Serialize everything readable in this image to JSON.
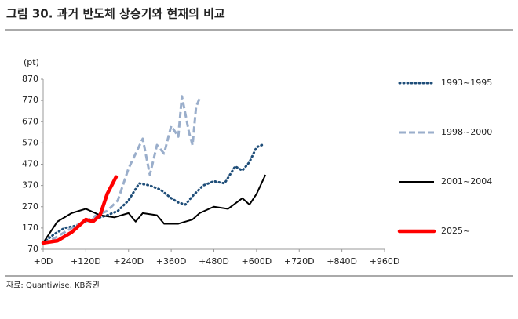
{
  "chart_data": {
    "type": "line",
    "title": "그림 30. 과거 반도체 상승기와 현재의 비교",
    "y_label": "(pt)",
    "source": "자료: Quantiwise, KB증권",
    "xlim": [
      0,
      960
    ],
    "ylim": [
      70,
      870
    ],
    "xticks": [
      {
        "value": 0,
        "label": "+0D"
      },
      {
        "value": 120,
        "label": "+120D"
      },
      {
        "value": 240,
        "label": "+240D"
      },
      {
        "value": 360,
        "label": "+360D"
      },
      {
        "value": 480,
        "label": "+480D"
      },
      {
        "value": 600,
        "label": "+600D"
      },
      {
        "value": 720,
        "label": "+720D"
      },
      {
        "value": 840,
        "label": "+840D"
      },
      {
        "value": 960,
        "label": "+960D"
      }
    ],
    "yticks": [
      70,
      170,
      270,
      370,
      470,
      570,
      670,
      770,
      870
    ],
    "legend": "right",
    "series": [
      {
        "name": "1993~1995",
        "color": "#1f4e79",
        "line_style": "dotted",
        "x": [
          0,
          30,
          60,
          90,
          120,
          150,
          180,
          210,
          240,
          255,
          270,
          300,
          330,
          360,
          380,
          400,
          420,
          450,
          480,
          510,
          540,
          560,
          580,
          600,
          615
        ],
        "values": [
          100,
          140,
          170,
          180,
          200,
          215,
          230,
          250,
          300,
          340,
          380,
          370,
          350,
          310,
          290,
          280,
          320,
          370,
          390,
          380,
          460,
          440,
          480,
          550,
          560
        ]
      },
      {
        "name": "1998~2000",
        "color": "#9aaecb",
        "line_style": "dashed",
        "x": [
          0,
          30,
          60,
          90,
          120,
          150,
          180,
          210,
          240,
          260,
          280,
          300,
          320,
          340,
          360,
          380,
          390,
          410,
          420,
          430,
          440
        ],
        "values": [
          100,
          120,
          150,
          180,
          200,
          230,
          250,
          300,
          450,
          520,
          590,
          420,
          560,
          520,
          650,
          600,
          790,
          620,
          560,
          740,
          780
        ]
      },
      {
        "name": "2001~2004",
        "color": "#000000",
        "line_style": "solid",
        "x": [
          0,
          40,
          80,
          120,
          160,
          200,
          240,
          260,
          280,
          320,
          340,
          380,
          420,
          440,
          480,
          520,
          560,
          580,
          600,
          625
        ],
        "values": [
          100,
          200,
          240,
          260,
          230,
          220,
          240,
          200,
          240,
          230,
          190,
          190,
          210,
          240,
          270,
          260,
          310,
          280,
          330,
          420
        ]
      },
      {
        "name": "2025~",
        "color": "#ff0000",
        "line_style": "bold",
        "x": [
          0,
          40,
          80,
          120,
          140,
          160,
          180,
          205
        ],
        "values": [
          100,
          110,
          150,
          210,
          200,
          230,
          330,
          410
        ]
      }
    ]
  }
}
